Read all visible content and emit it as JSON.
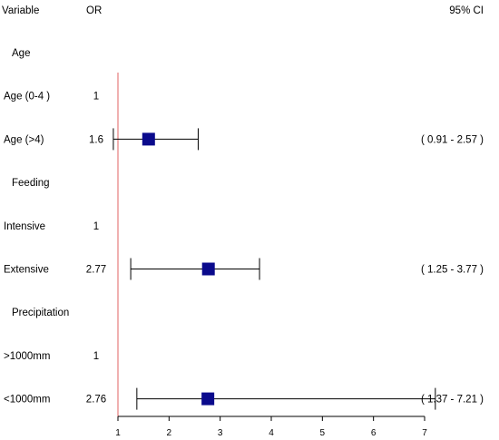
{
  "chart_data": {
    "type": "forest",
    "headers": {
      "variable": "Variable",
      "or": "OR",
      "ci": "95% CI"
    },
    "reference_line_x": 1,
    "xlim": [
      1,
      7
    ],
    "x_ticks": [
      1,
      2,
      3,
      4,
      5,
      6,
      7
    ],
    "colors": {
      "marker": "#0a0a8c",
      "reference_line": "#e06060",
      "whisker": "#000000"
    },
    "rows": [
      {
        "kind": "group",
        "label": "Age"
      },
      {
        "kind": "item",
        "label": "Age (0-4 )",
        "or_text": "1"
      },
      {
        "kind": "item",
        "label": "Age (>4)",
        "or_text": "1.6",
        "or": 1.6,
        "lower": 0.91,
        "upper": 2.57,
        "ci_text": "( 0.91 - 2.57 )"
      },
      {
        "kind": "group",
        "label": "Feeding"
      },
      {
        "kind": "item",
        "label": "Intensive",
        "or_text": "1"
      },
      {
        "kind": "item",
        "label": "Extensive",
        "or_text": "2.77",
        "or": 2.77,
        "lower": 1.25,
        "upper": 3.77,
        "ci_text": "( 1.25 - 3.77 )"
      },
      {
        "kind": "group",
        "label": "Precipitation"
      },
      {
        "kind": "item",
        "label": ">1000mm",
        "or_text": "1"
      },
      {
        "kind": "item",
        "label": "<1000mm",
        "or_text": "2.76",
        "or": 2.76,
        "lower": 1.37,
        "upper": 7.21,
        "ci_text": "( 1.37 - 7.21 )"
      }
    ]
  }
}
